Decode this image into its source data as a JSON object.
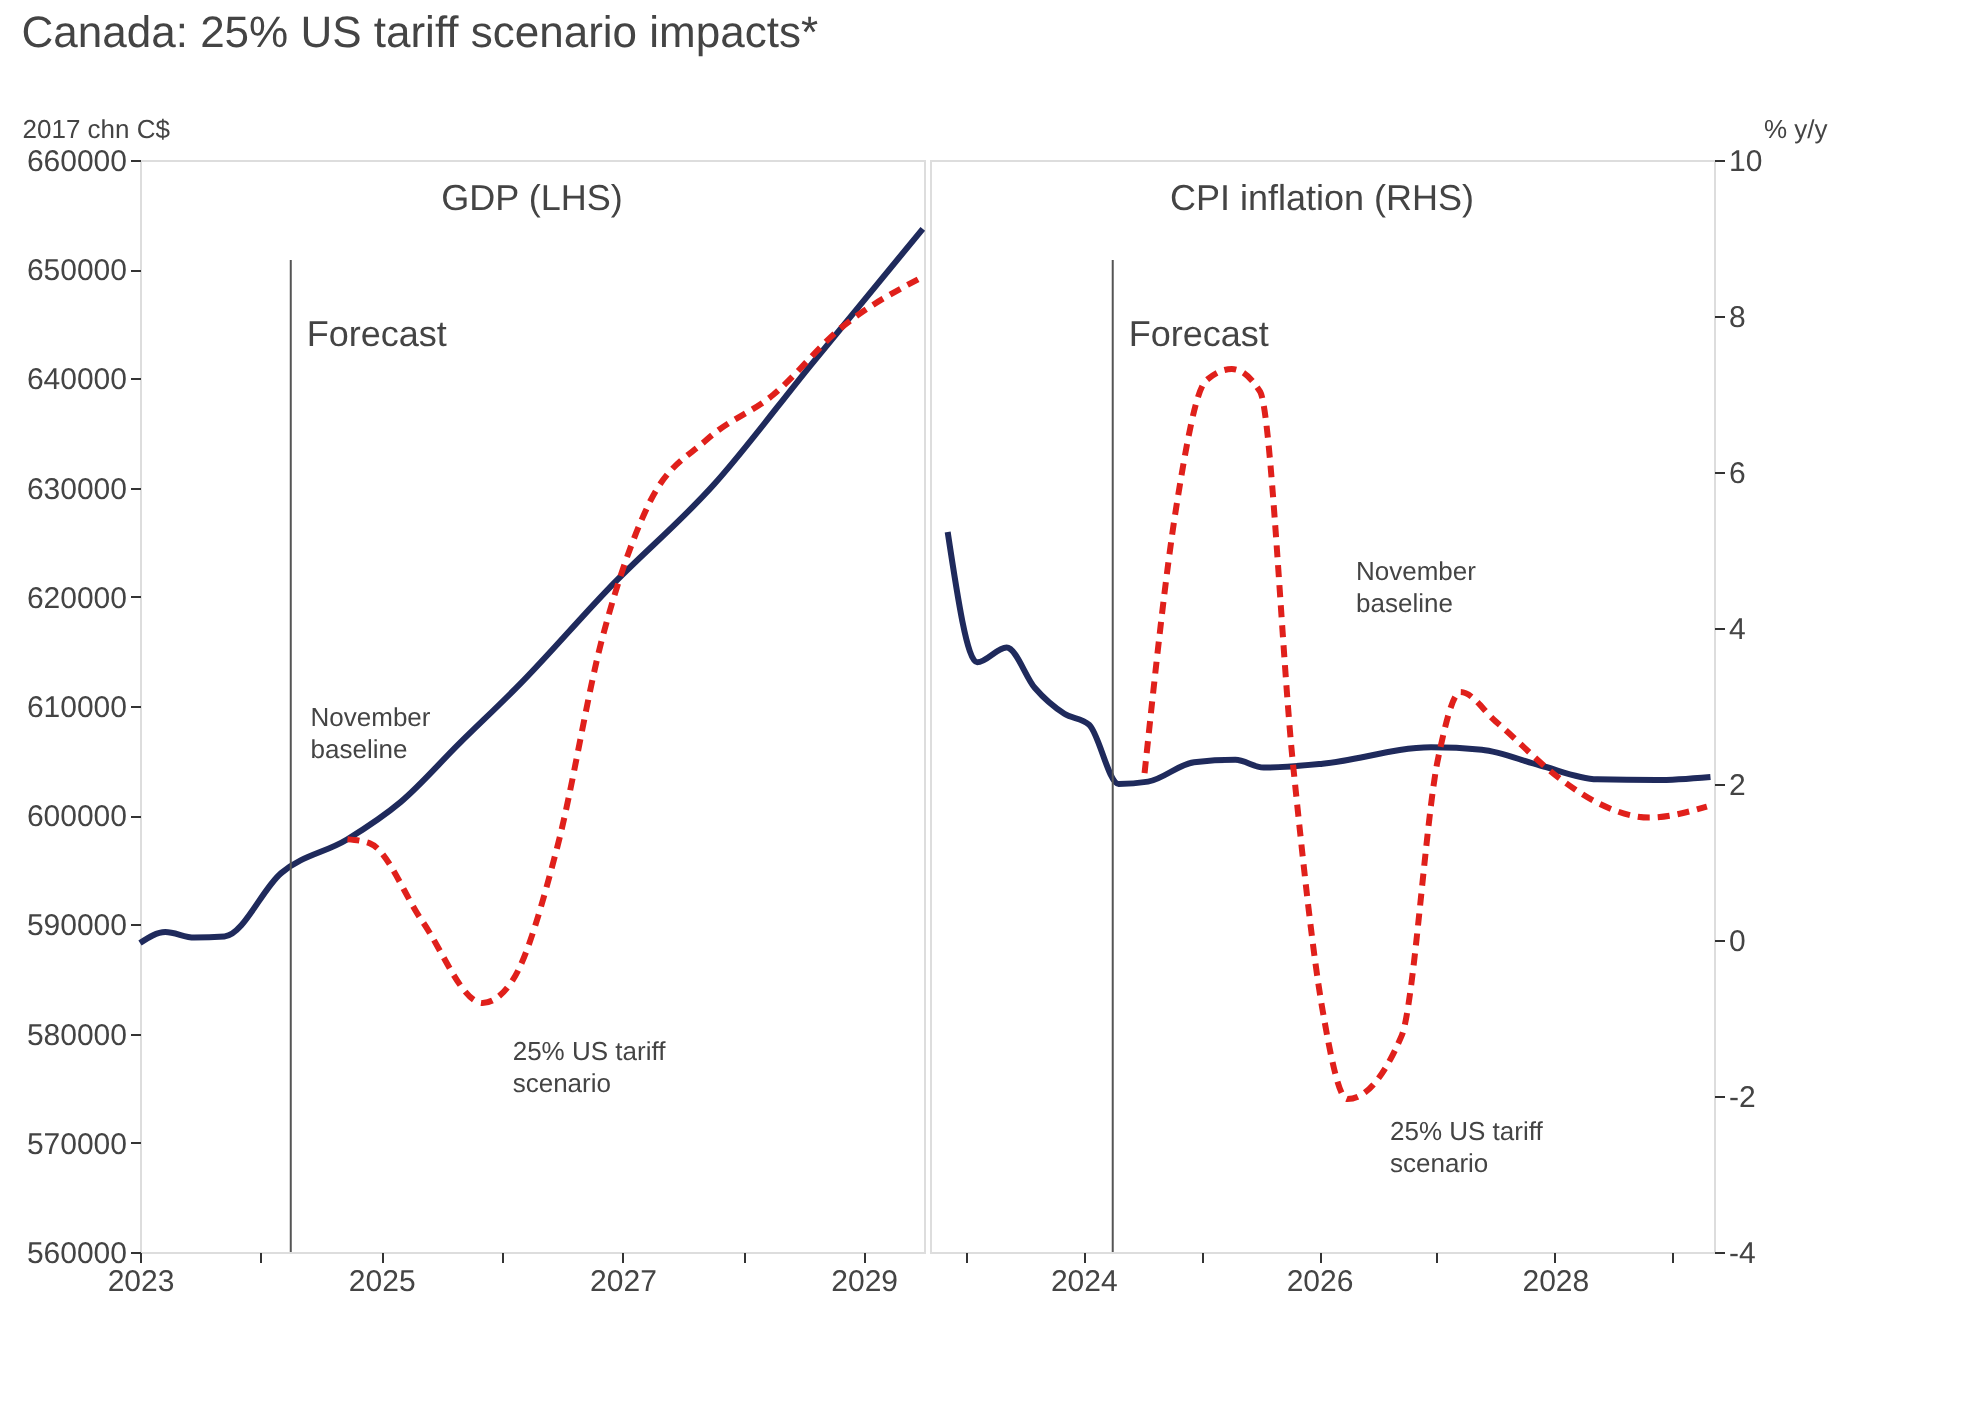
{
  "chart_data": [
    {
      "type": "line",
      "title": "Canada: 25% US tariff scenario impacts*",
      "ylabel": "2017 chn C$",
      "annotations": [
        "GDP (LHS)",
        {
          "text": "November\nbaseline",
          "x": 2025.16,
          "y": 601200
        },
        {
          "text": "25% US tariff\nscenario",
          "x": 2026.09,
          "y": 584900
        }
      ],
      "xlim": [
        2023,
        2029.5
      ],
      "xticks": [
        2023,
        {
          "value": 2024,
          "label": null
        },
        2025,
        {
          "value": 2026,
          "label": null
        },
        2027,
        {
          "value": 2028,
          "label": null
        },
        2029
      ],
      "ylim": [
        560000,
        660000
      ],
      "yticks": [
        560000,
        570000,
        580000,
        590000,
        600000,
        610000,
        620000,
        630000,
        640000,
        650000,
        660000
      ],
      "ref_lines": [
        {
          "axis": "x",
          "value": 2024.25,
          "label": "Forecast",
          "color": "#555555"
        }
      ],
      "grid": false,
      "series": [
        {
          "color": "#1f2a5c",
          "line_style": "solid",
          "x": [
            2023.0,
            2023.21,
            2023.45,
            2023.7,
            2024.17,
            2024.72,
            2025.16,
            2025.65,
            2026.15,
            2026.89,
            2027.76,
            2028.56,
            2029.49
          ],
          "values": [
            588300,
            589300,
            588800,
            588900,
            594700,
            597800,
            601200,
            606600,
            612000,
            620800,
            630300,
            641200,
            653700
          ]
        },
        {
          "color": "#e0201b",
          "line_style": "dashed",
          "x": [
            2024.72,
            2024.91,
            2025.34,
            2025.84,
            2026.09,
            2026.46,
            2026.83,
            2027.21,
            2027.7,
            2028.25,
            2028.81,
            2029.49
          ],
          "values": [
            597800,
            597400,
            590300,
            582800,
            584900,
            597100,
            616100,
            628300,
            634400,
            638500,
            644600,
            649300
          ]
        }
      ]
    },
    {
      "type": "line",
      "y2label": "% y/y",
      "annotations": [
        "CPI inflation  (RHS)",
        "November\nbaseline",
        "25% US tariff\nscenario"
      ],
      "xlim": [
        2022.7,
        2029.35
      ],
      "xticks": [
        {
          "value": 2023,
          "label": null
        },
        2024,
        {
          "value": 2025,
          "label": null
        },
        2026,
        {
          "value": 2027,
          "label": null
        },
        2028,
        {
          "value": 2029,
          "label": null
        }
      ],
      "y2lim": [
        -4,
        10
      ],
      "y2ticks": [
        -4,
        -2,
        0,
        2,
        4,
        6,
        8,
        10
      ],
      "ref_lines": [
        {
          "axis": "x",
          "value": 2024.25,
          "label": "Forecast",
          "color": "#555555"
        }
      ],
      "grid": false,
      "series": [
        {
          "axis": "y2",
          "color": "#1f2a5c",
          "line_style": "solid",
          "x": [
            2022.85,
            2023.1,
            2023.35,
            2023.59,
            2023.84,
            2024.05,
            2024.3,
            2024.55,
            2024.94,
            2025.29,
            2025.53,
            2026.03,
            2026.95,
            2027.38,
            2027.87,
            2028.36,
            2028.86,
            2029.32
          ],
          "values": [
            5.23,
            3.56,
            3.75,
            3.23,
            2.9,
            2.76,
            2.0,
            2.03,
            2.28,
            2.31,
            2.21,
            2.26,
            2.47,
            2.44,
            2.24,
            2.06,
            2.05,
            2.09
          ]
        },
        {
          "axis": "y2",
          "color": "#e0201b",
          "line_style": "dashed",
          "x": [
            2024.52,
            2024.79,
            2025.04,
            2025.26,
            2025.5,
            2025.78,
            2026.03,
            2026.24,
            2026.7,
            2027.01,
            2027.2,
            2027.5,
            2028.06,
            2028.36,
            2028.8,
            2029.29
          ],
          "values": [
            2.14,
            5.56,
            7.17,
            7.32,
            7.03,
            2.24,
            -0.9,
            -2.04,
            -1.23,
            2.33,
            3.18,
            2.8,
            2.05,
            1.76,
            1.57,
            1.71
          ]
        }
      ]
    }
  ]
}
